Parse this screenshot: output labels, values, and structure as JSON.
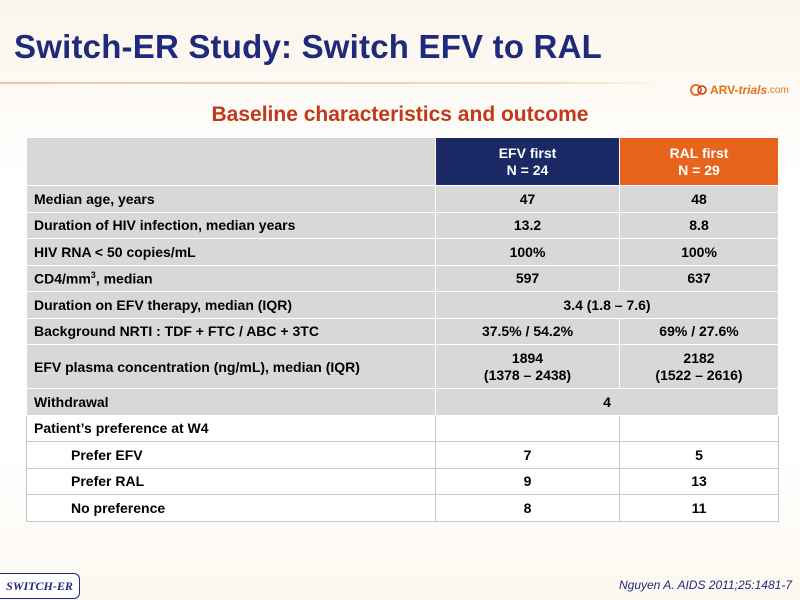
{
  "slide": {
    "title": "Switch-ER Study: Switch EFV to RAL",
    "subtitle": "Baseline characteristics and outcome",
    "logo": {
      "part1": "ARV-",
      "part2": "trials",
      "part3": ".com"
    },
    "tag": "SWITCH-ER",
    "reference": "Nguyen A. AIDS 2011;25:1481-7"
  },
  "table": {
    "headers": {
      "efv": {
        "line1": "EFV first",
        "line2": "N = 24"
      },
      "ral": {
        "line1": "RAL first",
        "line2": "N = 29"
      }
    },
    "rows": {
      "age": {
        "label": "Median age, years",
        "efv": "47",
        "ral": "48"
      },
      "duration_hiv": {
        "label": "Duration of HIV infection, median years",
        "efv": "13.2",
        "ral": "8.8"
      },
      "hiv_rna": {
        "label": "HIV RNA < 50 copies/mL",
        "efv": "100%",
        "ral": "100%"
      },
      "cd4": {
        "label_pre": "CD4/mm",
        "label_sup": "3",
        "label_post": ", median",
        "efv": "597",
        "ral": "637"
      },
      "duration_efv": {
        "label": "Duration on EFV therapy, median (IQR)",
        "combined": "3.4 (1.8 – 7.6)"
      },
      "nrti": {
        "label": "Background NRTI : TDF + FTC / ABC + 3TC",
        "efv": "37.5% / 54.2%",
        "ral": "69% / 27.6%"
      },
      "plasma": {
        "label": "EFV plasma concentration (ng/mL), median (IQR)",
        "efv_l1": "1894",
        "efv_l2": "(1378 – 2438)",
        "ral_l1": "2182",
        "ral_l2": "(1522 – 2616)"
      },
      "withdrawal": {
        "label": "Withdrawal",
        "combined": "4"
      },
      "preference": {
        "label": "Patient’s preference at W4"
      },
      "prefer_efv": {
        "label": "Prefer EFV",
        "efv": "7",
        "ral": "5"
      },
      "prefer_ral": {
        "label": "Prefer RAL",
        "efv": "9",
        "ral": "13"
      },
      "no_pref": {
        "label": "No preference",
        "efv": "8",
        "ral": "11"
      }
    }
  },
  "colors": {
    "title": "#1f2a7c",
    "subtitle": "#c0391b",
    "efv_header": "#1b2a66",
    "ral_header": "#e8641c",
    "row_gray": "#d8d8d8"
  }
}
